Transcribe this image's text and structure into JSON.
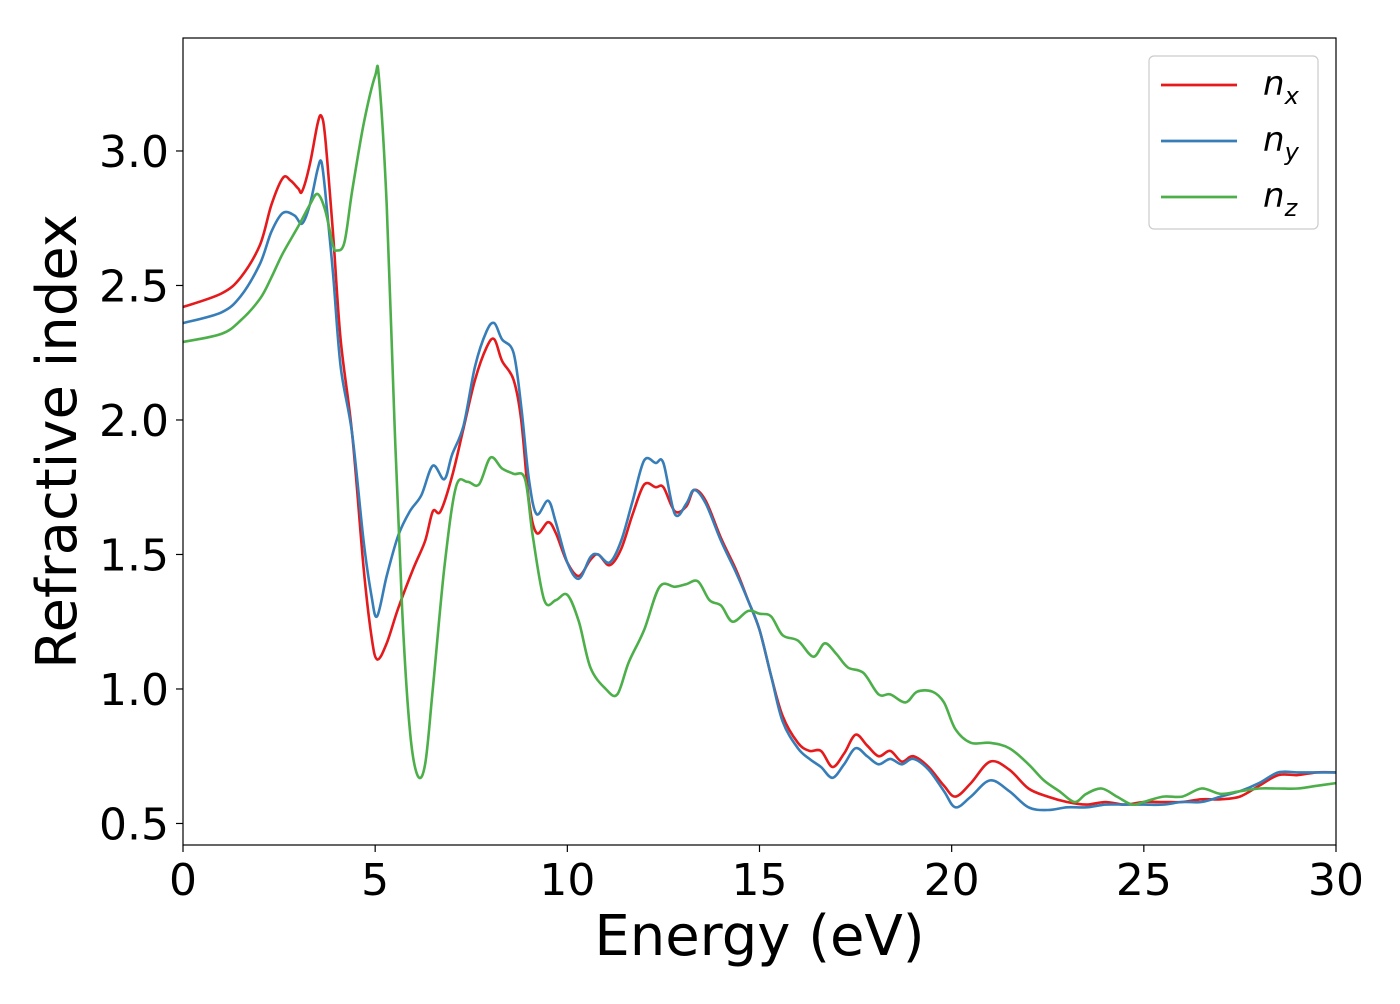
{
  "chart_data": {
    "type": "line",
    "xlabel": "Energy (eV)",
    "ylabel": "Refractive index",
    "xlim": [
      0,
      30
    ],
    "ylim": [
      0.42,
      3.42
    ],
    "xticks": [
      0,
      5,
      10,
      15,
      20,
      25,
      30
    ],
    "xtick_labels": [
      "0",
      "5",
      "10",
      "15",
      "20",
      "25",
      "30"
    ],
    "yticks": [
      0.5,
      1.0,
      1.5,
      2.0,
      2.5,
      3.0
    ],
    "ytick_labels": [
      "0.5",
      "1.0",
      "1.5",
      "2.0",
      "2.5",
      "3.0"
    ],
    "grid": false,
    "legend_position": "top-right",
    "series": [
      {
        "name": "n_x",
        "label_base": "n",
        "label_sub": "x",
        "color": "#e41a1c",
        "points": [
          [
            0,
            2.42
          ],
          [
            1,
            2.47
          ],
          [
            1.5,
            2.53
          ],
          [
            2,
            2.65
          ],
          [
            2.3,
            2.8
          ],
          [
            2.6,
            2.9
          ],
          [
            2.8,
            2.89
          ],
          [
            3.0,
            2.86
          ],
          [
            3.1,
            2.85
          ],
          [
            3.3,
            2.95
          ],
          [
            3.5,
            3.1
          ],
          [
            3.6,
            3.13
          ],
          [
            3.7,
            3.05
          ],
          [
            3.9,
            2.7
          ],
          [
            4.1,
            2.3
          ],
          [
            4.4,
            1.95
          ],
          [
            4.7,
            1.45
          ],
          [
            4.9,
            1.2
          ],
          [
            5.05,
            1.11
          ],
          [
            5.3,
            1.17
          ],
          [
            5.6,
            1.3
          ],
          [
            6.0,
            1.45
          ],
          [
            6.3,
            1.55
          ],
          [
            6.5,
            1.66
          ],
          [
            6.7,
            1.66
          ],
          [
            7.0,
            1.79
          ],
          [
            7.3,
            1.97
          ],
          [
            7.6,
            2.15
          ],
          [
            7.9,
            2.27
          ],
          [
            8.1,
            2.3
          ],
          [
            8.3,
            2.22
          ],
          [
            8.6,
            2.15
          ],
          [
            8.8,
            2.0
          ],
          [
            9.0,
            1.7
          ],
          [
            9.2,
            1.58
          ],
          [
            9.5,
            1.62
          ],
          [
            9.7,
            1.58
          ],
          [
            10.0,
            1.47
          ],
          [
            10.3,
            1.42
          ],
          [
            10.6,
            1.48
          ],
          [
            10.8,
            1.5
          ],
          [
            11.1,
            1.46
          ],
          [
            11.4,
            1.52
          ],
          [
            11.7,
            1.65
          ],
          [
            12.0,
            1.76
          ],
          [
            12.3,
            1.75
          ],
          [
            12.5,
            1.75
          ],
          [
            12.8,
            1.66
          ],
          [
            13.1,
            1.68
          ],
          [
            13.3,
            1.74
          ],
          [
            13.6,
            1.7
          ],
          [
            14.0,
            1.56
          ],
          [
            14.4,
            1.44
          ],
          [
            14.7,
            1.33
          ],
          [
            15.0,
            1.22
          ],
          [
            15.3,
            1.05
          ],
          [
            15.6,
            0.9
          ],
          [
            16.0,
            0.8
          ],
          [
            16.3,
            0.77
          ],
          [
            16.6,
            0.77
          ],
          [
            16.9,
            0.71
          ],
          [
            17.2,
            0.76
          ],
          [
            17.5,
            0.83
          ],
          [
            17.8,
            0.79
          ],
          [
            18.1,
            0.75
          ],
          [
            18.4,
            0.77
          ],
          [
            18.7,
            0.73
          ],
          [
            19.0,
            0.75
          ],
          [
            19.4,
            0.71
          ],
          [
            19.8,
            0.64
          ],
          [
            20.1,
            0.6
          ],
          [
            20.5,
            0.65
          ],
          [
            21.0,
            0.73
          ],
          [
            21.5,
            0.7
          ],
          [
            22.0,
            0.63
          ],
          [
            22.5,
            0.6
          ],
          [
            23.0,
            0.58
          ],
          [
            23.5,
            0.57
          ],
          [
            24.0,
            0.58
          ],
          [
            24.5,
            0.57
          ],
          [
            25.0,
            0.58
          ],
          [
            25.5,
            0.58
          ],
          [
            26.0,
            0.58
          ],
          [
            26.5,
            0.59
          ],
          [
            27.0,
            0.59
          ],
          [
            27.5,
            0.6
          ],
          [
            28.0,
            0.64
          ],
          [
            28.5,
            0.68
          ],
          [
            29.0,
            0.68
          ],
          [
            29.5,
            0.69
          ],
          [
            30,
            0.69
          ]
        ]
      },
      {
        "name": "n_y",
        "label_base": "n",
        "label_sub": "y",
        "color": "#377eb8",
        "points": [
          [
            0,
            2.36
          ],
          [
            1,
            2.4
          ],
          [
            1.5,
            2.46
          ],
          [
            2,
            2.58
          ],
          [
            2.3,
            2.7
          ],
          [
            2.6,
            2.77
          ],
          [
            2.9,
            2.76
          ],
          [
            3.1,
            2.73
          ],
          [
            3.3,
            2.8
          ],
          [
            3.5,
            2.93
          ],
          [
            3.6,
            2.96
          ],
          [
            3.7,
            2.85
          ],
          [
            3.9,
            2.55
          ],
          [
            4.1,
            2.2
          ],
          [
            4.4,
            1.95
          ],
          [
            4.7,
            1.55
          ],
          [
            4.9,
            1.35
          ],
          [
            5.05,
            1.27
          ],
          [
            5.3,
            1.42
          ],
          [
            5.6,
            1.57
          ],
          [
            5.9,
            1.66
          ],
          [
            6.2,
            1.72
          ],
          [
            6.5,
            1.83
          ],
          [
            6.8,
            1.78
          ],
          [
            7.0,
            1.87
          ],
          [
            7.3,
            1.98
          ],
          [
            7.6,
            2.2
          ],
          [
            7.9,
            2.33
          ],
          [
            8.1,
            2.36
          ],
          [
            8.3,
            2.3
          ],
          [
            8.6,
            2.25
          ],
          [
            8.8,
            2.05
          ],
          [
            9.0,
            1.78
          ],
          [
            9.2,
            1.65
          ],
          [
            9.5,
            1.7
          ],
          [
            9.7,
            1.62
          ],
          [
            10.0,
            1.47
          ],
          [
            10.3,
            1.41
          ],
          [
            10.6,
            1.49
          ],
          [
            10.8,
            1.5
          ],
          [
            11.1,
            1.47
          ],
          [
            11.4,
            1.55
          ],
          [
            11.7,
            1.7
          ],
          [
            12.0,
            1.85
          ],
          [
            12.3,
            1.84
          ],
          [
            12.5,
            1.84
          ],
          [
            12.8,
            1.65
          ],
          [
            13.1,
            1.69
          ],
          [
            13.3,
            1.74
          ],
          [
            13.6,
            1.69
          ],
          [
            14.0,
            1.55
          ],
          [
            14.4,
            1.43
          ],
          [
            14.7,
            1.33
          ],
          [
            15.0,
            1.22
          ],
          [
            15.3,
            1.05
          ],
          [
            15.6,
            0.88
          ],
          [
            16.0,
            0.78
          ],
          [
            16.3,
            0.74
          ],
          [
            16.6,
            0.71
          ],
          [
            16.9,
            0.67
          ],
          [
            17.2,
            0.72
          ],
          [
            17.5,
            0.78
          ],
          [
            17.8,
            0.75
          ],
          [
            18.1,
            0.72
          ],
          [
            18.4,
            0.74
          ],
          [
            18.7,
            0.72
          ],
          [
            19.0,
            0.74
          ],
          [
            19.4,
            0.7
          ],
          [
            19.8,
            0.62
          ],
          [
            20.1,
            0.56
          ],
          [
            20.5,
            0.6
          ],
          [
            21.0,
            0.66
          ],
          [
            21.5,
            0.62
          ],
          [
            22.0,
            0.56
          ],
          [
            22.5,
            0.55
          ],
          [
            23.0,
            0.56
          ],
          [
            23.5,
            0.56
          ],
          [
            24.0,
            0.57
          ],
          [
            24.5,
            0.57
          ],
          [
            25.0,
            0.57
          ],
          [
            25.5,
            0.57
          ],
          [
            26.0,
            0.58
          ],
          [
            26.5,
            0.58
          ],
          [
            27.0,
            0.6
          ],
          [
            27.5,
            0.62
          ],
          [
            28.0,
            0.65
          ],
          [
            28.5,
            0.69
          ],
          [
            29.0,
            0.69
          ],
          [
            29.5,
            0.69
          ],
          [
            30,
            0.69
          ]
        ]
      },
      {
        "name": "n_z",
        "label_base": "n",
        "label_sub": "z",
        "color": "#4daf4a",
        "points": [
          [
            0,
            2.29
          ],
          [
            1,
            2.32
          ],
          [
            1.5,
            2.37
          ],
          [
            2,
            2.45
          ],
          [
            2.3,
            2.53
          ],
          [
            2.6,
            2.62
          ],
          [
            3.0,
            2.72
          ],
          [
            3.3,
            2.8
          ],
          [
            3.5,
            2.84
          ],
          [
            3.7,
            2.78
          ],
          [
            3.9,
            2.65
          ],
          [
            4.0,
            2.63
          ],
          [
            4.2,
            2.66
          ],
          [
            4.4,
            2.85
          ],
          [
            4.7,
            3.1
          ],
          [
            5.0,
            3.28
          ],
          [
            5.1,
            3.27
          ],
          [
            5.3,
            2.8
          ],
          [
            5.5,
            2.0
          ],
          [
            5.7,
            1.3
          ],
          [
            5.9,
            0.85
          ],
          [
            6.1,
            0.68
          ],
          [
            6.3,
            0.72
          ],
          [
            6.5,
            1.0
          ],
          [
            6.8,
            1.45
          ],
          [
            7.1,
            1.75
          ],
          [
            7.4,
            1.77
          ],
          [
            7.7,
            1.76
          ],
          [
            8.0,
            1.86
          ],
          [
            8.3,
            1.82
          ],
          [
            8.6,
            1.8
          ],
          [
            8.9,
            1.78
          ],
          [
            9.1,
            1.57
          ],
          [
            9.4,
            1.33
          ],
          [
            9.7,
            1.33
          ],
          [
            10.0,
            1.35
          ],
          [
            10.3,
            1.25
          ],
          [
            10.6,
            1.08
          ],
          [
            11.0,
            1.0
          ],
          [
            11.3,
            0.98
          ],
          [
            11.6,
            1.1
          ],
          [
            12.0,
            1.22
          ],
          [
            12.4,
            1.38
          ],
          [
            12.8,
            1.38
          ],
          [
            13.1,
            1.39
          ],
          [
            13.4,
            1.4
          ],
          [
            13.7,
            1.33
          ],
          [
            14.0,
            1.31
          ],
          [
            14.3,
            1.25
          ],
          [
            14.7,
            1.29
          ],
          [
            15.0,
            1.28
          ],
          [
            15.3,
            1.27
          ],
          [
            15.6,
            1.2
          ],
          [
            16.0,
            1.18
          ],
          [
            16.4,
            1.12
          ],
          [
            16.7,
            1.17
          ],
          [
            17.0,
            1.13
          ],
          [
            17.3,
            1.08
          ],
          [
            17.7,
            1.06
          ],
          [
            18.1,
            0.98
          ],
          [
            18.4,
            0.98
          ],
          [
            18.8,
            0.95
          ],
          [
            19.1,
            0.99
          ],
          [
            19.5,
            0.99
          ],
          [
            19.8,
            0.95
          ],
          [
            20.1,
            0.85
          ],
          [
            20.5,
            0.8
          ],
          [
            21.0,
            0.8
          ],
          [
            21.5,
            0.78
          ],
          [
            22.0,
            0.72
          ],
          [
            22.4,
            0.66
          ],
          [
            22.8,
            0.62
          ],
          [
            23.2,
            0.58
          ],
          [
            23.5,
            0.61
          ],
          [
            23.9,
            0.63
          ],
          [
            24.3,
            0.6
          ],
          [
            24.7,
            0.57
          ],
          [
            25.0,
            0.58
          ],
          [
            25.5,
            0.6
          ],
          [
            26.0,
            0.6
          ],
          [
            26.5,
            0.63
          ],
          [
            27.0,
            0.61
          ],
          [
            27.5,
            0.62
          ],
          [
            28.0,
            0.63
          ],
          [
            28.5,
            0.63
          ],
          [
            29.0,
            0.63
          ],
          [
            29.5,
            0.64
          ],
          [
            30,
            0.65
          ]
        ]
      }
    ]
  }
}
